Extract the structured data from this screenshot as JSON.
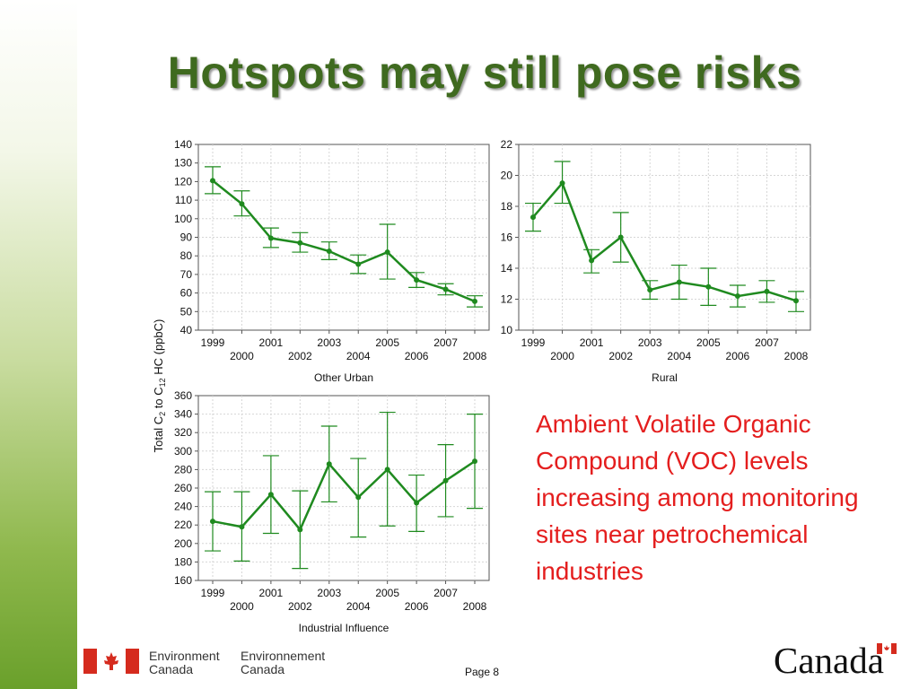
{
  "slide": {
    "title": "Hotspots may still pose risks",
    "annotation": "Ambient Volatile Organic Compound (VOC) levels increasing among monitoring sites near petrochemical industries",
    "footer": {
      "agency_en_line1": "Environment",
      "agency_en_line2": "Canada",
      "agency_fr_line1": "Environnement",
      "agency_fr_line2": "Canada",
      "page_label": "Page 8",
      "wordmark": "Canada"
    },
    "colors": {
      "title": "#3f6a1f",
      "series": "#1f8a1f",
      "annotation": "#e41e1e"
    }
  },
  "y_axis_label": {
    "prefix": "Total C",
    "sub1": "2",
    "middle": " to C",
    "sub2": "12",
    "suffix": " HC (ppbC)"
  },
  "chart_data": [
    {
      "type": "line",
      "xlabel": "Other Urban",
      "x": [
        1999,
        2000,
        2001,
        2002,
        2003,
        2004,
        2005,
        2006,
        2007,
        2008
      ],
      "ylim": [
        40,
        140
      ],
      "yticks": [
        40,
        50,
        60,
        70,
        80,
        90,
        100,
        110,
        120,
        130,
        140
      ],
      "values": [
        120.5,
        108,
        89.5,
        87,
        82.5,
        75.5,
        82,
        67,
        62,
        55.5
      ],
      "err_low": [
        113.5,
        101.5,
        84.5,
        82,
        78,
        70.5,
        67.5,
        63,
        59,
        52.5
      ],
      "err_high": [
        128,
        115,
        95,
        92.5,
        87.5,
        80.5,
        97,
        71,
        65,
        58.5
      ],
      "grid": true
    },
    {
      "type": "line",
      "xlabel": "Rural",
      "x": [
        1999,
        2000,
        2001,
        2002,
        2003,
        2004,
        2005,
        2006,
        2007,
        2008
      ],
      "ylim": [
        10,
        22
      ],
      "yticks": [
        10,
        12,
        14,
        16,
        18,
        20,
        22
      ],
      "values": [
        17.3,
        19.5,
        14.5,
        16,
        12.6,
        13.1,
        12.8,
        12.2,
        12.5,
        11.9
      ],
      "err_low": [
        16.4,
        18.2,
        13.7,
        14.4,
        12.0,
        12.0,
        11.6,
        11.5,
        11.8,
        11.2
      ],
      "err_high": [
        18.2,
        20.9,
        15.2,
        17.6,
        13.2,
        14.2,
        14.0,
        12.9,
        13.2,
        12.5
      ],
      "grid": true
    },
    {
      "type": "line",
      "xlabel": "Industrial Influence",
      "x": [
        1999,
        2000,
        2001,
        2002,
        2003,
        2004,
        2005,
        2006,
        2007,
        2008
      ],
      "ylim": [
        160,
        360
      ],
      "yticks": [
        160,
        180,
        200,
        220,
        240,
        260,
        280,
        300,
        320,
        340,
        360
      ],
      "values": [
        224,
        218,
        253,
        215,
        286,
        250,
        280,
        244,
        268,
        289
      ],
      "err_low": [
        192,
        181,
        211,
        173,
        245,
        207,
        219,
        213,
        229,
        238
      ],
      "err_high": [
        256,
        256,
        295,
        257,
        327,
        292,
        342,
        274,
        307,
        340
      ],
      "grid": true
    }
  ]
}
